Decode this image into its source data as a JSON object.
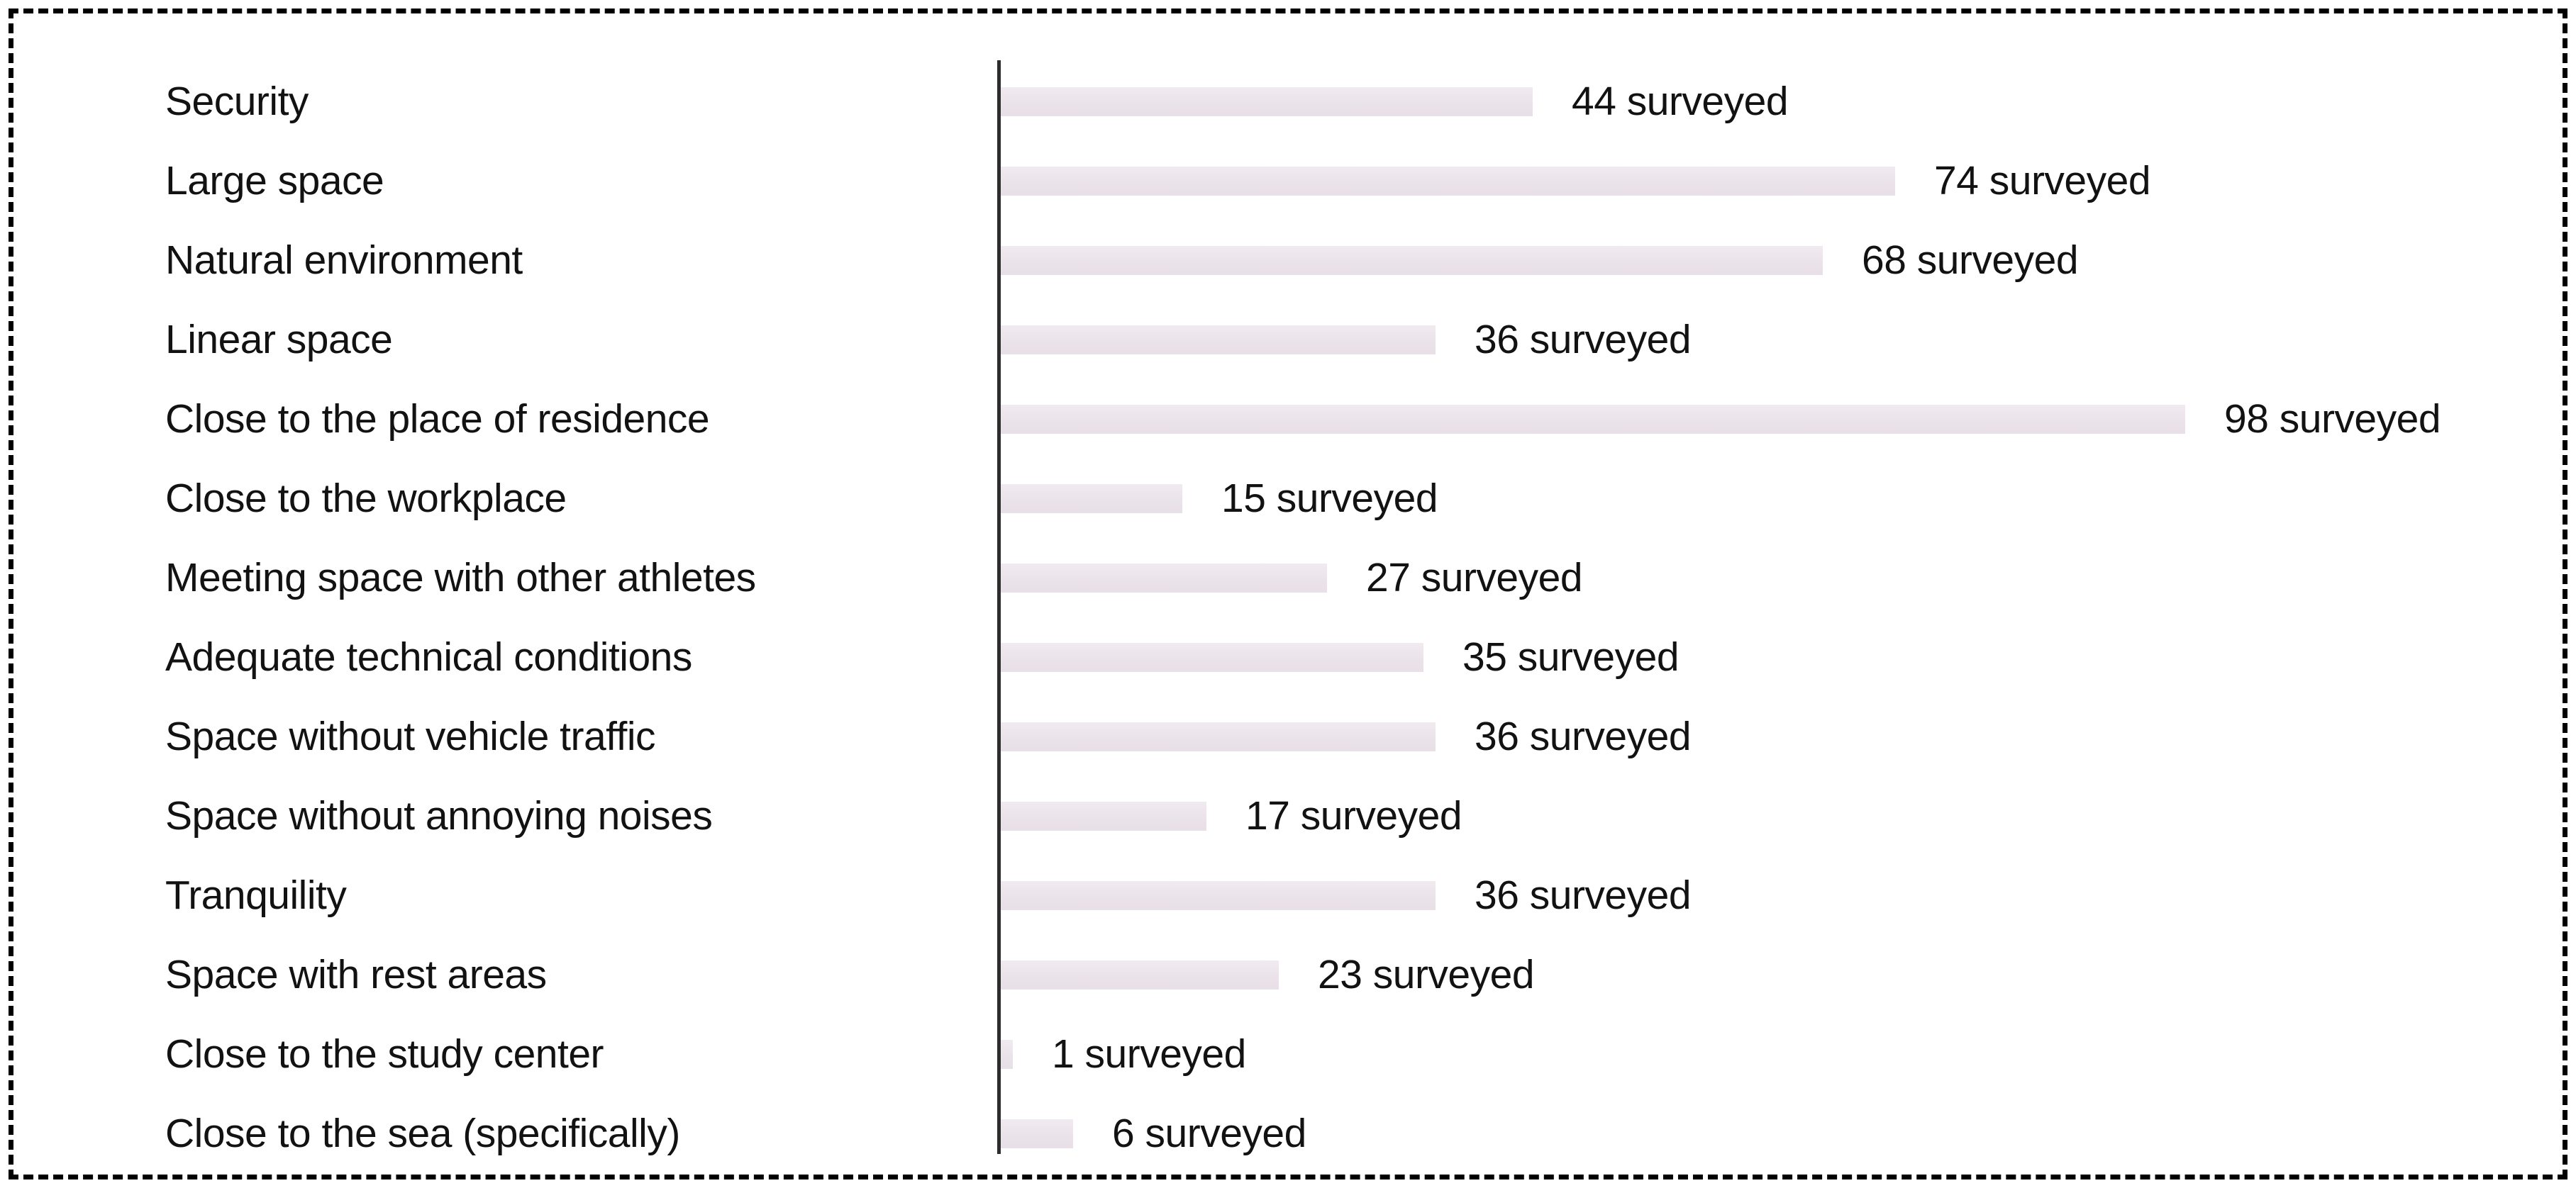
{
  "chart_data": {
    "type": "bar",
    "orientation": "horizontal",
    "title": "",
    "xlabel": "",
    "ylabel": "",
    "xlim": [
      0,
      105
    ],
    "grid": false,
    "legend": false,
    "categories": [
      "Security",
      "Large space",
      "Natural environment",
      "Linear space",
      "Close to the place of residence",
      "Close to the workplace",
      "Meeting space with other athletes",
      "Adequate technical conditions",
      "Space without vehicle traffic",
      "Space without annoying noises",
      "Tranquility",
      "Space with rest areas",
      "Close to the study center",
      "Close to the sea (specifically)"
    ],
    "values": [
      44,
      74,
      68,
      36,
      98,
      15,
      27,
      35,
      36,
      17,
      36,
      23,
      1,
      6
    ],
    "value_label_suffix": " surveyed",
    "bar_color": "#ebe3ea",
    "axis_color": "#2d2d2d",
    "text_color": "#121212",
    "border_color": "#000000"
  }
}
